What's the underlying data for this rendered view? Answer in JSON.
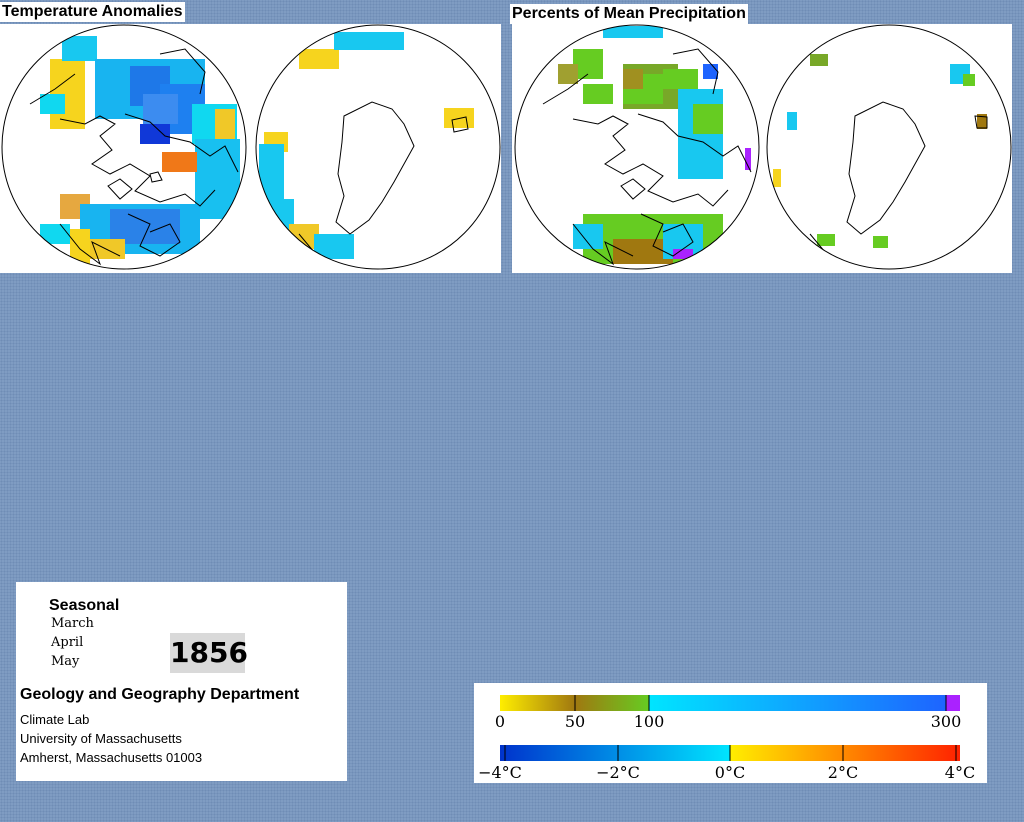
{
  "temperature_panel": {
    "title": "Temperature Anomalies"
  },
  "precipitation_panel": {
    "title": "Percents of Mean Precipitation"
  },
  "info": {
    "season": "Seasonal",
    "months": [
      "March",
      "April",
      "May"
    ],
    "year": "1856",
    "department": "Geology and Geography Department",
    "address_lines": [
      "Climate Lab",
      "University of Massachusetts",
      "Amherst, Massachusetts 01003"
    ]
  },
  "legend": {
    "precip_ticks": [
      "0",
      "50",
      "100",
      "300"
    ],
    "temp_ticks": [
      "−4°C",
      "−2°C",
      "0°C",
      "2°C",
      "4°C"
    ]
  },
  "colors": {
    "background": "#7f9cc2",
    "precip_dry": "#ffee00",
    "precip_50": "#a07810",
    "precip_100": "#66cc22",
    "precip_wet": "#1e64ff",
    "precip_max": "#aa22ff",
    "temp_cold": "#0033cc",
    "temp_zero": "#00e5ff",
    "temp_warm": "#ffee00",
    "temp_hot": "#ff2200"
  }
}
